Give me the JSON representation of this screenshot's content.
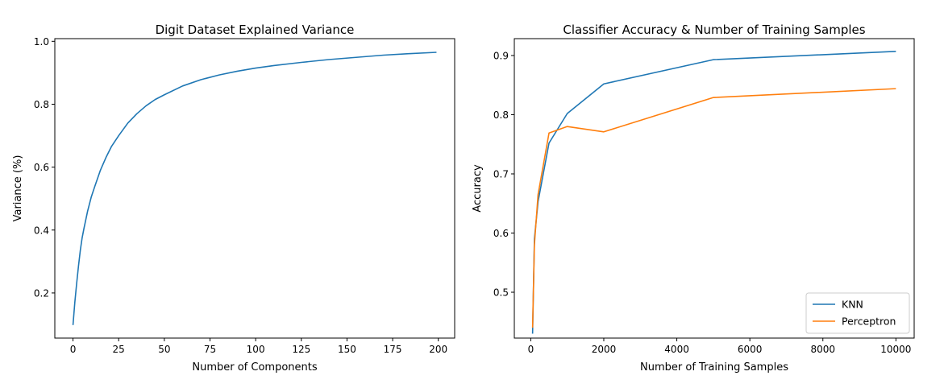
{
  "chart_data": [
    {
      "type": "line",
      "title": "Digit Dataset Explained Variance",
      "xlabel": "Number of Components",
      "ylabel": "Variance (%)",
      "xlim": [
        -9.95,
        208.95
      ],
      "ylim": [
        0.0565,
        1.0085
      ],
      "xticks": [
        0,
        25,
        50,
        75,
        100,
        125,
        150,
        175,
        200
      ],
      "yticks": [
        0.2,
        0.4,
        0.6,
        0.8,
        1.0
      ],
      "xtick_labels": [
        "0",
        "25",
        "50",
        "75",
        "100",
        "125",
        "150",
        "175",
        "200"
      ],
      "ytick_labels": [
        "0.2",
        "0.4",
        "0.6",
        "0.8",
        "1.0"
      ],
      "grid": false,
      "colors": {
        "line": "#1f77b4"
      },
      "series": [
        {
          "x": [
            0,
            1,
            2,
            3,
            4,
            5,
            6,
            8,
            10,
            12,
            15,
            18,
            21,
            25,
            30,
            35,
            40,
            45,
            50,
            60,
            70,
            80,
            90,
            100,
            110,
            125,
            140,
            155,
            170,
            185,
            199
          ],
          "y": [
            0.098,
            0.17,
            0.23,
            0.285,
            0.335,
            0.375,
            0.405,
            0.46,
            0.505,
            0.54,
            0.59,
            0.63,
            0.665,
            0.7,
            0.74,
            0.77,
            0.795,
            0.815,
            0.83,
            0.858,
            0.878,
            0.893,
            0.905,
            0.915,
            0.923,
            0.933,
            0.942,
            0.949,
            0.956,
            0.961,
            0.965
          ]
        }
      ]
    },
    {
      "type": "line",
      "title": "Classifier Accuracy & Number of Training Samples",
      "xlabel": "Number of Training Samples",
      "ylabel": "Accuracy",
      "xlim": [
        -450,
        10500
      ],
      "ylim": [
        0.4225,
        0.9285
      ],
      "xticks": [
        0,
        2000,
        4000,
        6000,
        8000,
        10000
      ],
      "yticks": [
        0.5,
        0.6,
        0.7,
        0.8,
        0.9
      ],
      "xtick_labels": [
        "0",
        "2000",
        "4000",
        "6000",
        "8000",
        "10000"
      ],
      "ytick_labels": [
        "0.5",
        "0.6",
        "0.7",
        "0.8",
        "0.9"
      ],
      "grid": false,
      "legend_position": "lower right",
      "series": [
        {
          "name": "KNN",
          "color": "#1f77b4",
          "x": [
            50,
            100,
            200,
            500,
            1000,
            2000,
            5000,
            10000
          ],
          "y": [
            0.43,
            0.59,
            0.653,
            0.752,
            0.802,
            0.852,
            0.893,
            0.907
          ]
        },
        {
          "name": "Perceptron",
          "color": "#ff7f0e",
          "x": [
            50,
            100,
            200,
            500,
            1000,
            2000,
            5000,
            10000
          ],
          "y": [
            0.44,
            0.58,
            0.665,
            0.769,
            0.78,
            0.771,
            0.829,
            0.844
          ]
        }
      ]
    }
  ]
}
